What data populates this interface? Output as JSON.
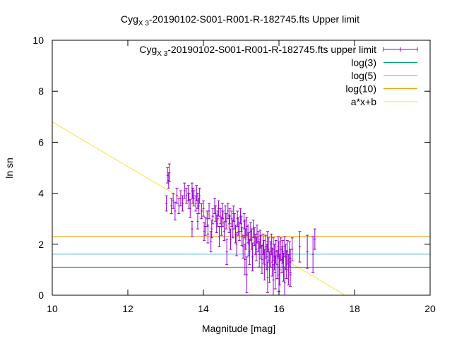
{
  "chart_data": {
    "type": "scatter",
    "title": {
      "prefix": "Cyg",
      "subscript": "X 3",
      "suffix": "-20190102-S001-R001-R-182745.fts Upper limit"
    },
    "xlabel": "Magnitude [mag]",
    "ylabel": "ln sn",
    "xlim": [
      10,
      20
    ],
    "ylim": [
      0,
      10
    ],
    "xticks": [
      10,
      12,
      14,
      16,
      18,
      20
    ],
    "yticks": [
      0,
      2,
      4,
      6,
      8,
      10
    ],
    "grid": false,
    "legend_position": "top-right",
    "colors": {
      "data": "#9400d3",
      "log3": "#009e73",
      "log5": "#56b4e9",
      "log10": "#e69f00",
      "fit": "#f0e442"
    },
    "legend": [
      {
        "key": "data",
        "prefix": "Cyg",
        "subscript": "X 3",
        "suffix": "-20190102-S001-R001-R-182745.fts upper limit"
      },
      {
        "key": "log3",
        "label": "log(3)"
      },
      {
        "key": "log5",
        "label": "log(5)"
      },
      {
        "key": "log10",
        "label": "log(10)"
      },
      {
        "key": "fit",
        "label": "a*x+b"
      }
    ],
    "hlines": [
      {
        "key": "log3",
        "y": 1.0986
      },
      {
        "key": "log5",
        "y": 1.6094
      },
      {
        "key": "log10",
        "y": 2.3026
      }
    ],
    "fit_line": {
      "key": "fit",
      "x": [
        10.0,
        17.75
      ],
      "y": [
        6.8,
        0.0
      ]
    },
    "series": [
      {
        "key": "data",
        "points": [
          [
            13.05,
            4.7,
            0.3
          ],
          [
            13.08,
            4.5,
            0.3
          ],
          [
            13.1,
            4.8,
            0.35
          ],
          [
            13.02,
            3.6,
            0.3
          ],
          [
            13.15,
            3.5,
            0.3
          ],
          [
            13.2,
            3.7,
            0.3
          ],
          [
            13.25,
            3.3,
            0.35
          ],
          [
            13.3,
            3.9,
            0.3
          ],
          [
            13.35,
            3.5,
            0.3
          ],
          [
            13.4,
            3.8,
            0.3
          ],
          [
            13.45,
            3.6,
            0.3
          ],
          [
            13.5,
            4.1,
            0.3
          ],
          [
            13.55,
            3.9,
            0.3
          ],
          [
            13.6,
            4.0,
            0.3
          ],
          [
            13.62,
            3.7,
            0.3
          ],
          [
            13.65,
            3.4,
            0.35
          ],
          [
            13.7,
            4.1,
            0.3
          ],
          [
            13.72,
            3.9,
            0.3
          ],
          [
            13.75,
            3.8,
            0.3
          ],
          [
            13.8,
            3.6,
            0.3
          ],
          [
            13.82,
            4.0,
            0.3
          ],
          [
            13.85,
            3.7,
            0.3
          ],
          [
            13.88,
            3.5,
            0.3
          ],
          [
            13.9,
            3.9,
            0.3
          ],
          [
            13.95,
            3.3,
            0.3
          ],
          [
            13.7,
            2.6,
            0.3
          ],
          [
            13.85,
            2.9,
            0.3
          ],
          [
            14.0,
            3.4,
            0.3
          ],
          [
            14.02,
            2.5,
            0.35
          ],
          [
            14.05,
            2.7,
            0.35
          ],
          [
            14.1,
            3.0,
            0.3
          ],
          [
            14.12,
            2.4,
            0.35
          ],
          [
            14.15,
            3.3,
            0.3
          ],
          [
            14.2,
            2.1,
            0.4
          ],
          [
            14.22,
            2.6,
            0.35
          ],
          [
            14.25,
            3.1,
            0.3
          ],
          [
            14.3,
            3.5,
            0.3
          ],
          [
            14.32,
            3.2,
            0.3
          ],
          [
            14.35,
            2.8,
            0.35
          ],
          [
            14.38,
            3.0,
            0.3
          ],
          [
            14.4,
            3.4,
            0.3
          ],
          [
            14.42,
            2.3,
            0.4
          ],
          [
            14.45,
            3.1,
            0.3
          ],
          [
            14.48,
            2.7,
            0.35
          ],
          [
            14.5,
            3.3,
            0.3
          ],
          [
            14.52,
            3.0,
            0.3
          ],
          [
            14.55,
            2.5,
            0.35
          ],
          [
            14.58,
            3.2,
            0.3
          ],
          [
            14.6,
            2.9,
            0.3
          ],
          [
            14.62,
            1.7,
            0.5
          ],
          [
            14.65,
            3.3,
            0.3
          ],
          [
            14.68,
            2.8,
            0.35
          ],
          [
            14.7,
            3.1,
            0.3
          ],
          [
            14.72,
            2.2,
            0.4
          ],
          [
            14.75,
            3.0,
            0.3
          ],
          [
            14.78,
            2.6,
            0.35
          ],
          [
            14.8,
            3.2,
            0.3
          ],
          [
            14.82,
            2.9,
            0.3
          ],
          [
            14.85,
            2.4,
            0.35
          ],
          [
            14.88,
            2.0,
            0.45
          ],
          [
            14.9,
            3.0,
            0.3
          ],
          [
            14.92,
            2.7,
            0.35
          ],
          [
            14.95,
            2.5,
            0.35
          ],
          [
            14.98,
            3.1,
            0.3
          ],
          [
            15.0,
            2.8,
            0.3
          ],
          [
            15.02,
            2.3,
            0.35
          ],
          [
            15.05,
            1.9,
            0.45
          ],
          [
            15.08,
            2.9,
            0.3
          ],
          [
            15.1,
            2.6,
            0.35
          ],
          [
            15.12,
            2.2,
            0.4
          ],
          [
            15.15,
            2.7,
            0.35
          ],
          [
            15.18,
            2.4,
            0.35
          ],
          [
            15.2,
            2.0,
            0.45
          ],
          [
            15.22,
            1.7,
            0.5
          ],
          [
            15.25,
            2.5,
            0.35
          ],
          [
            15.28,
            2.2,
            0.4
          ],
          [
            15.3,
            1.5,
            0.55
          ],
          [
            15.32,
            2.6,
            0.35
          ],
          [
            15.35,
            2.3,
            0.35
          ],
          [
            15.38,
            2.0,
            0.4
          ],
          [
            15.1,
            1.4,
            0.6
          ],
          [
            15.15,
            0.8,
            0.7
          ],
          [
            15.4,
            1.8,
            0.45
          ],
          [
            15.42,
            2.4,
            0.35
          ],
          [
            15.45,
            2.1,
            0.4
          ],
          [
            15.48,
            1.6,
            0.5
          ],
          [
            15.5,
            2.2,
            0.35
          ],
          [
            15.52,
            1.9,
            0.45
          ],
          [
            15.55,
            1.4,
            0.55
          ],
          [
            15.58,
            2.0,
            0.4
          ],
          [
            15.6,
            1.7,
            0.45
          ],
          [
            15.62,
            1.2,
            0.6
          ],
          [
            15.65,
            1.9,
            0.45
          ],
          [
            15.68,
            1.5,
            0.5
          ],
          [
            15.7,
            2.1,
            0.4
          ],
          [
            15.72,
            1.8,
            0.45
          ],
          [
            15.75,
            1.1,
            0.6
          ],
          [
            15.78,
            1.6,
            0.5
          ],
          [
            15.8,
            2.0,
            0.4
          ],
          [
            15.82,
            1.3,
            0.55
          ],
          [
            15.85,
            1.8,
            0.45
          ],
          [
            15.88,
            1.5,
            0.5
          ],
          [
            15.9,
            0.9,
            0.65
          ],
          [
            15.92,
            1.7,
            0.45
          ],
          [
            15.95,
            1.2,
            0.55
          ],
          [
            15.98,
            1.9,
            0.4
          ],
          [
            16.0,
            1.6,
            0.5
          ],
          [
            16.02,
            1.0,
            0.6
          ],
          [
            16.05,
            1.8,
            0.45
          ],
          [
            16.08,
            1.4,
            0.5
          ],
          [
            16.1,
            1.7,
            0.45
          ],
          [
            16.12,
            1.1,
            0.55
          ],
          [
            16.15,
            1.9,
            0.4
          ],
          [
            16.18,
            1.5,
            0.5
          ],
          [
            16.2,
            1.2,
            0.55
          ],
          [
            16.22,
            1.7,
            0.45
          ],
          [
            16.25,
            1.0,
            0.6
          ],
          [
            16.28,
            1.6,
            0.5
          ],
          [
            16.3,
            1.3,
            0.5
          ],
          [
            16.35,
            1.8,
            0.45
          ],
          [
            15.7,
            0.7,
            0.6
          ],
          [
            15.85,
            0.6,
            0.6
          ],
          [
            16.0,
            0.8,
            0.65
          ],
          [
            16.15,
            0.5,
            0.6
          ],
          [
            16.3,
            0.9,
            0.55
          ],
          [
            16.55,
            1.9,
            0.6
          ],
          [
            16.75,
            1.7,
            0.65
          ],
          [
            16.9,
            1.6,
            0.7
          ],
          [
            16.95,
            2.2,
            0.4
          ]
        ]
      }
    ]
  }
}
